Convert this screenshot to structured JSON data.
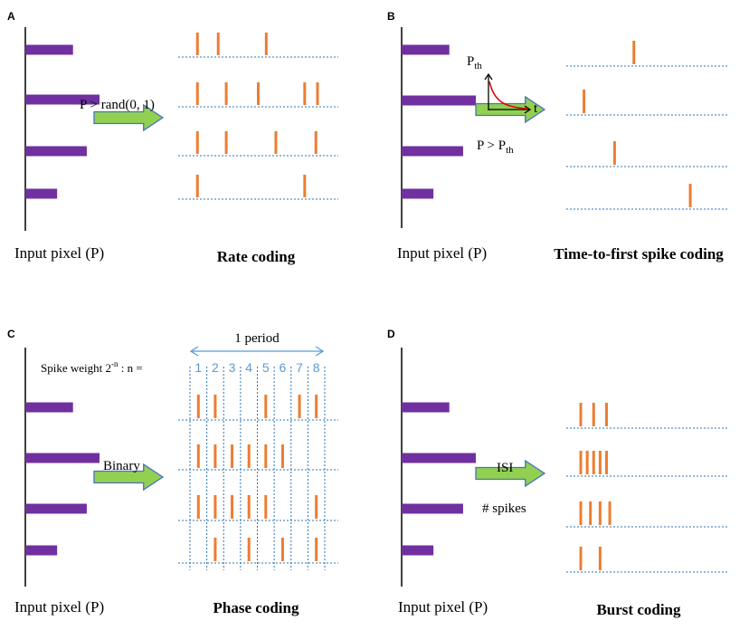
{
  "colors": {
    "pixel_bar": "#7030a0",
    "spike": "#ed7d31",
    "baseline": "#2e75b6",
    "arrow_fill": "#92d050",
    "arrow_stroke": "#4472c4",
    "curve": "#e00000",
    "axis": "#000000",
    "period_arrow": "#5b9bd5",
    "slot_label": "#5b9bd5"
  },
  "panels": [
    {
      "letter": "A",
      "input_label": "Input pixel (P)",
      "coding_label": "Rate coding",
      "arrow_text": [
        "P > rand(0, 1)"
      ],
      "pixel_intensities": [
        0.45,
        0.7,
        0.58,
        0.3
      ],
      "spike_times": [
        [
          0.12,
          0.25,
          0.55
        ],
        [
          0.12,
          0.3,
          0.5,
          0.79,
          0.87
        ],
        [
          0.12,
          0.3,
          0.61,
          0.86
        ],
        [
          0.12,
          0.79
        ]
      ]
    },
    {
      "letter": "B",
      "input_label": "Input pixel (P)",
      "coding_label": "Time-to-first spike coding",
      "arrow_text": [
        "P > P",
        "th"
      ],
      "curve_labels": {
        "y": "P",
        "y_sub": "th",
        "x": "t"
      },
      "pixel_intensities": [
        0.45,
        0.7,
        0.58,
        0.3
      ],
      "spike_times": [
        [
          0.42
        ],
        [
          0.11
        ],
        [
          0.3
        ],
        [
          0.77
        ]
      ]
    },
    {
      "letter": "C",
      "input_label": "Input pixel (P)",
      "coding_label": "Phase coding",
      "arrow_text": [
        "Binary"
      ],
      "period_label": "1 period",
      "spike_weight_label": "Spike weight 2",
      "spike_weight_exp": "-n",
      "spike_weight_tail": " : n =",
      "slots": [
        "1",
        "2",
        "3",
        "4",
        "5",
        "6",
        "7",
        "8"
      ],
      "pixel_intensities": [
        0.45,
        0.7,
        0.58,
        0.3
      ],
      "phase_bits": [
        [
          1,
          1,
          0,
          0,
          1,
          0,
          1,
          1
        ],
        [
          1,
          1,
          1,
          1,
          1,
          1,
          0,
          0
        ],
        [
          1,
          1,
          1,
          1,
          1,
          0,
          0,
          1
        ],
        [
          0,
          1,
          0,
          1,
          0,
          1,
          0,
          1
        ]
      ]
    },
    {
      "letter": "D",
      "input_label": "Input pixel  (P)",
      "coding_label": "Burst coding",
      "arrow_text": [
        "ISI",
        "# spikes"
      ],
      "pixel_intensities": [
        0.45,
        0.7,
        0.58,
        0.3
      ],
      "burst_counts": [
        3,
        5,
        4,
        2
      ],
      "burst_isi": [
        0.08,
        0.04,
        0.06,
        0.12
      ]
    }
  ]
}
